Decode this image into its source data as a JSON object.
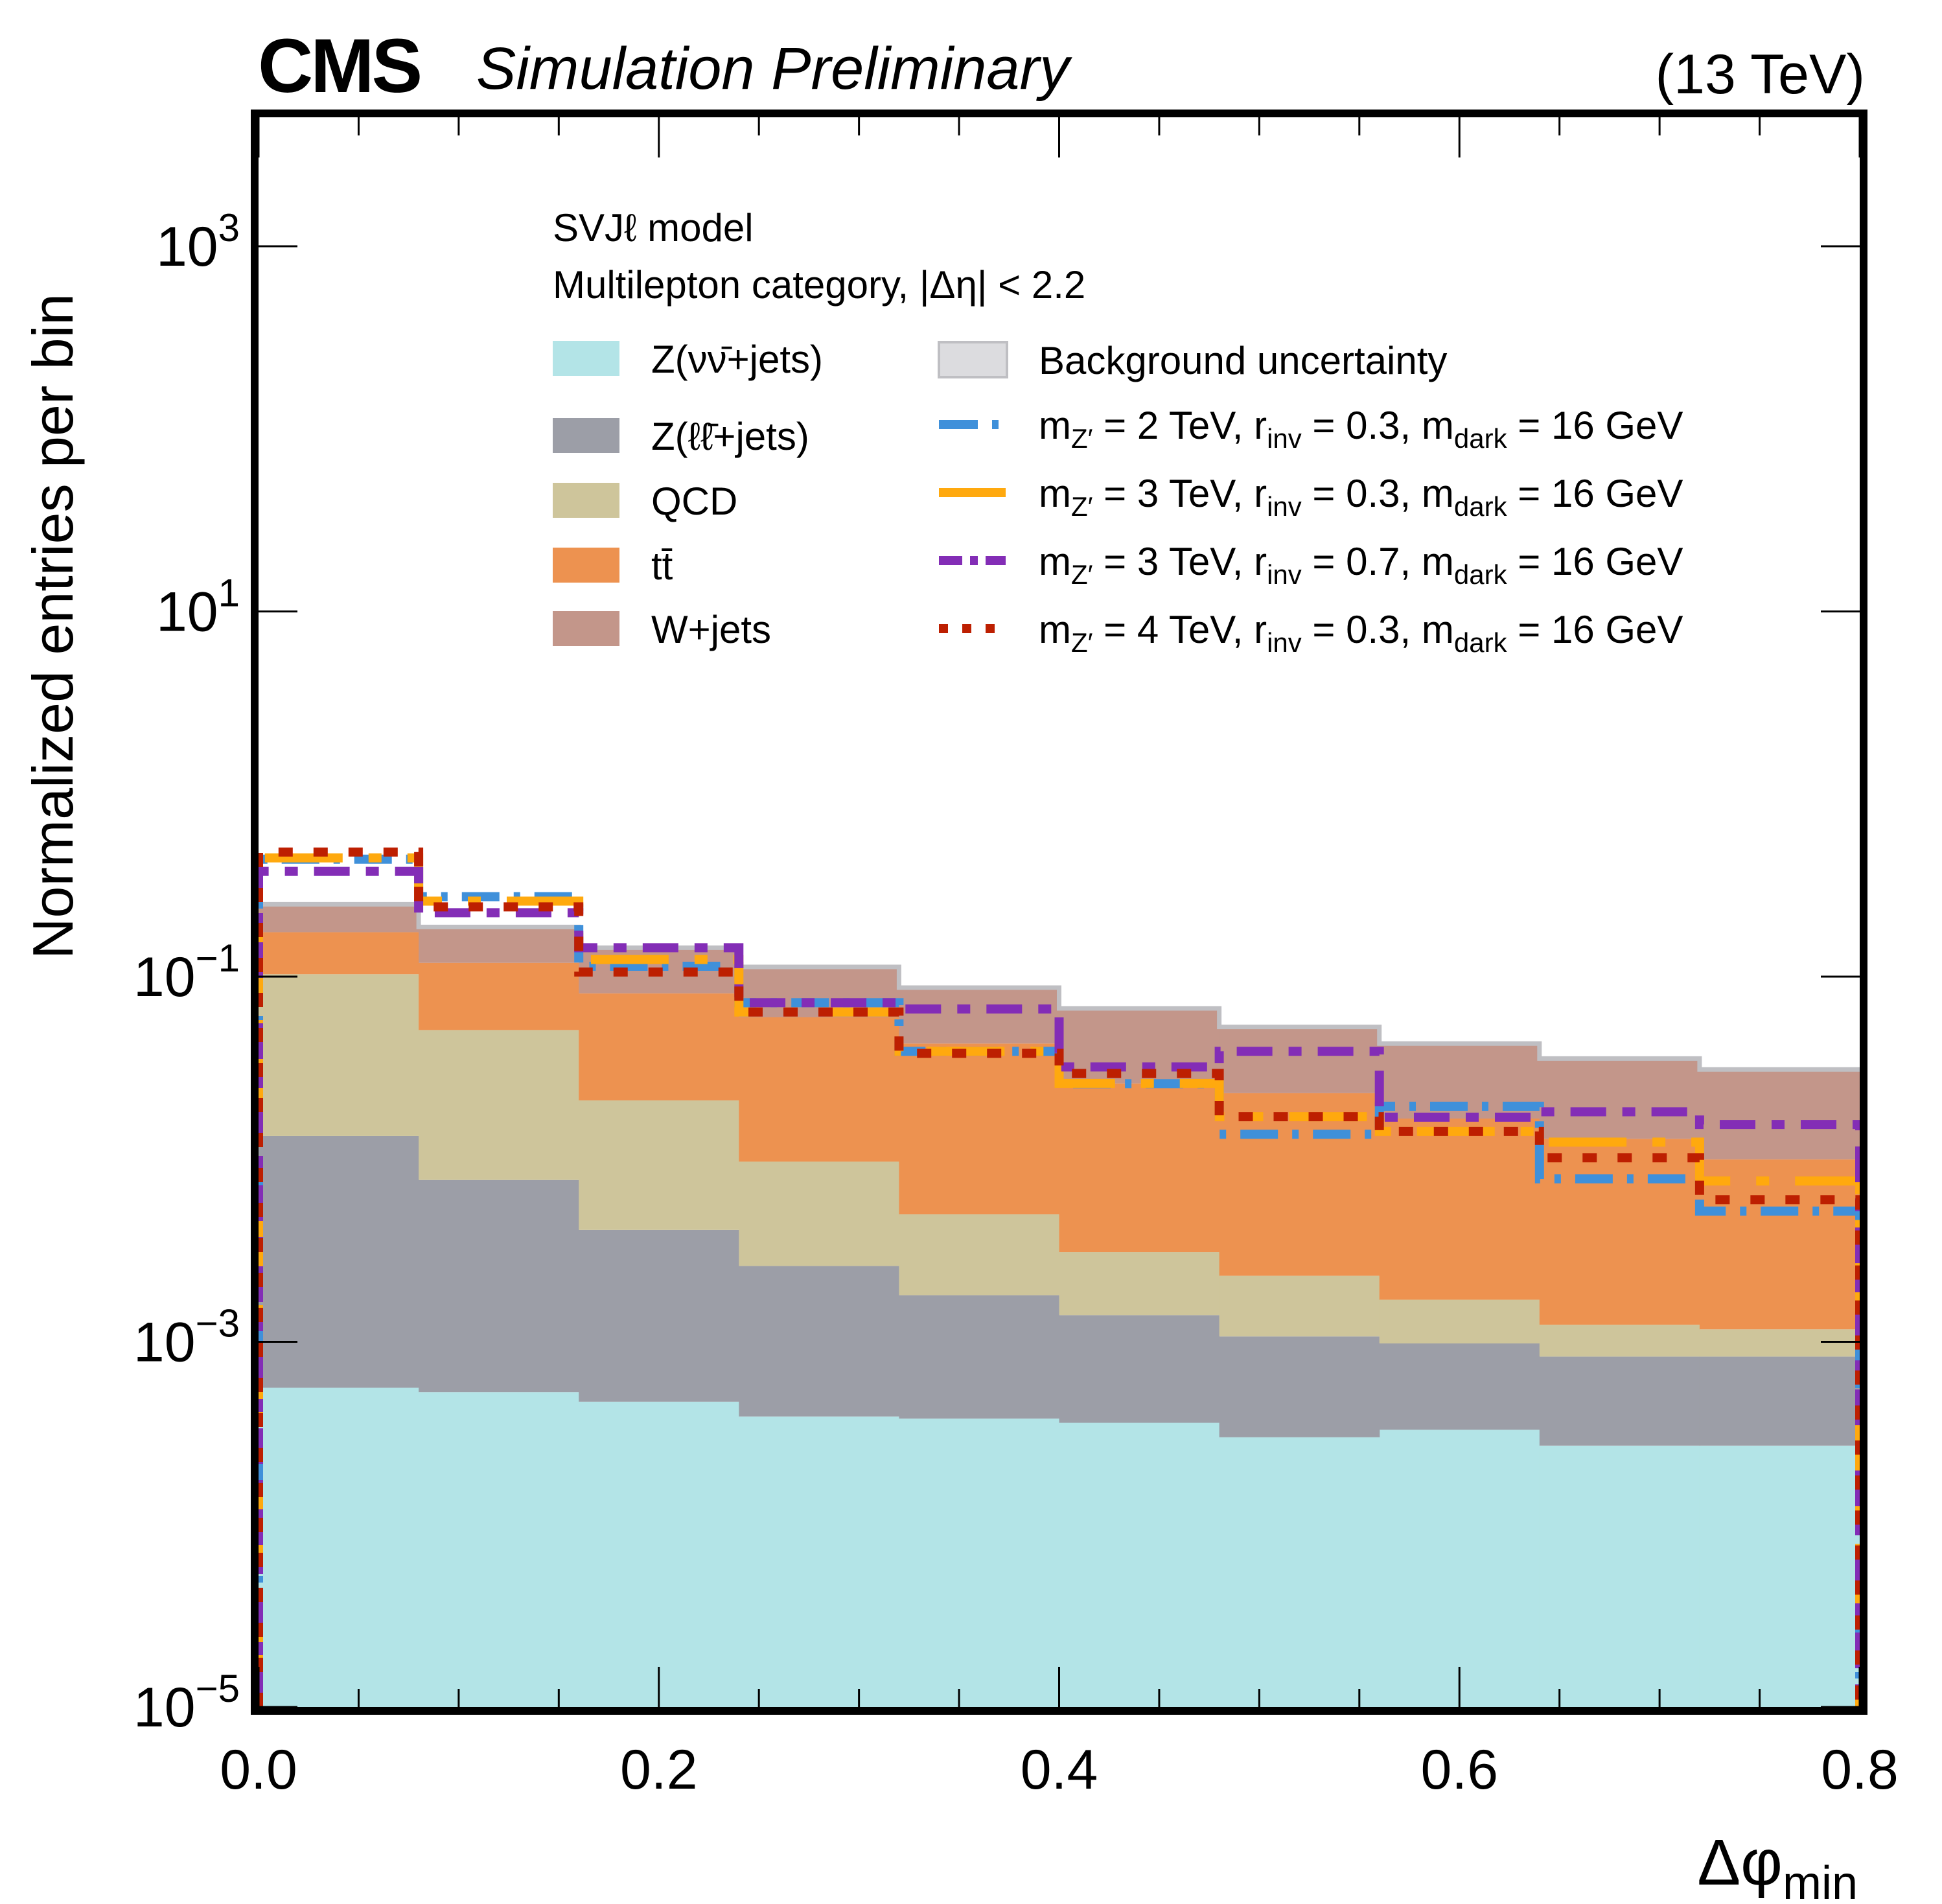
{
  "header": {
    "experiment": "CMS",
    "status": "Simulation Preliminary",
    "energy": "(13 TeV)"
  },
  "chart_data": {
    "type": "bar",
    "subtype": "stacked-histogram-with-step-overlays",
    "title": "",
    "xlabel": "Δφ",
    "xlabel_subscript": "min",
    "ylabel": "Normalized entries per bin",
    "xlim": [
      0.0,
      0.8
    ],
    "ylim": [
      1e-05,
      5000
    ],
    "yscale": "log",
    "grid": false,
    "x_ticks": [
      "0.0",
      "0.2",
      "0.4",
      "0.6",
      "0.8"
    ],
    "x_tick_values": [
      0.0,
      0.2,
      0.4,
      0.6,
      0.8
    ],
    "x_minor_step": 0.05,
    "y_ticks": [
      {
        "base": "10",
        "exp": "3",
        "value": 1000
      },
      {
        "base": "10",
        "exp": "1",
        "value": 10
      },
      {
        "base": "10",
        "exp": "−1",
        "value": 0.1
      },
      {
        "base": "10",
        "exp": "−3",
        "value": 0.001
      },
      {
        "base": "10",
        "exp": "−5",
        "value": 1e-05
      }
    ],
    "bin_edges": [
      0.0,
      0.08,
      0.16,
      0.24,
      0.32,
      0.4,
      0.48,
      0.56,
      0.64,
      0.72,
      0.8
    ],
    "annotation": {
      "line1": "SVJℓ model",
      "line2": "Multilepton category,  |Δη| < 2.2"
    },
    "legend_position": "top-center",
    "stacked_backgrounds": [
      {
        "name": "Z(νν̄+jets)",
        "color": "#b3e4e7",
        "values": [
          0.00056,
          0.00053,
          0.00047,
          0.00039,
          0.00038,
          0.00036,
          0.0003,
          0.00033,
          0.00027,
          0.00027
        ]
      },
      {
        "name": "Z(ℓℓ̄+jets)",
        "color": "#9c9ea7",
        "values": [
          0.01284,
          0.00717,
          0.00363,
          0.00221,
          0.00142,
          0.00104,
          0.00077,
          0.00065,
          0.00056,
          0.00056
        ]
      },
      {
        "name": "QCD",
        "color": "#cec59b",
        "values": [
          0.0897,
          0.0433,
          0.0169,
          0.0071,
          0.0032,
          0.0017,
          0.00123,
          0.00072,
          0.00041,
          0.00034
        ]
      },
      {
        "name": "tt̄",
        "color": "#ed9250",
        "values": [
          0.072,
          0.068,
          0.06,
          0.0503,
          0.038,
          0.0229,
          0.0207,
          0.015,
          0.0117,
          0.0088
        ]
      },
      {
        "name": "W+jets",
        "color": "#c3968a",
        "values": [
          0.074,
          0.068,
          0.063,
          0.053,
          0.044,
          0.041,
          0.03,
          0.026,
          0.0227,
          0.021
        ]
      }
    ],
    "stack_totals": [
      0.249,
      0.187,
      0.144,
      0.113,
      0.087,
      0.067,
      0.053,
      0.043,
      0.0356,
      0.031
    ],
    "uncertainty": {
      "name": "Background uncertainty",
      "color": "#dcdcdf",
      "edge": "#bfbfc3"
    },
    "series": [
      {
        "name": "m_Z′ = 2 TeV, r_inv = 0.3, m_dark = 16 GeV",
        "label_parts": {
          "mz": "2",
          "rinv": "0.3",
          "mdark": "16"
        },
        "color": "#3f90da",
        "style": "dashed",
        "values": [
          0.44,
          0.274,
          0.114,
          0.072,
          0.039,
          0.0259,
          0.0137,
          0.0195,
          0.0078,
          0.0052
        ]
      },
      {
        "name": "m_Z′ = 3 TeV, r_inv = 0.3, m_dark = 16 GeV",
        "label_parts": {
          "mz": "3",
          "rinv": "0.3",
          "mdark": "16"
        },
        "color": "#ffa90e",
        "style": "solid-dashed",
        "values": [
          0.447,
          0.259,
          0.124,
          0.064,
          0.039,
          0.026,
          0.0171,
          0.0142,
          0.0124,
          0.0076
        ]
      },
      {
        "name": "m_Z′ = 3 TeV, r_inv = 0.7, m_dark = 16 GeV",
        "label_parts": {
          "mz": "3",
          "rinv": "0.7",
          "mdark": "16"
        },
        "color": "#832db6",
        "style": "dashdot",
        "values": [
          0.377,
          0.224,
          0.144,
          0.072,
          0.0665,
          0.032,
          0.039,
          0.017,
          0.0182,
          0.0155
        ]
      },
      {
        "name": "m_Z′ = 4 TeV, r_inv = 0.3, m_dark = 16 GeV",
        "label_parts": {
          "mz": "4",
          "rinv": "0.3",
          "mdark": "16"
        },
        "color": "#bd1f01",
        "style": "dotted",
        "values": [
          0.481,
          0.241,
          0.106,
          0.064,
          0.038,
          0.0295,
          0.0171,
          0.0142,
          0.0102,
          0.006
        ]
      }
    ]
  }
}
